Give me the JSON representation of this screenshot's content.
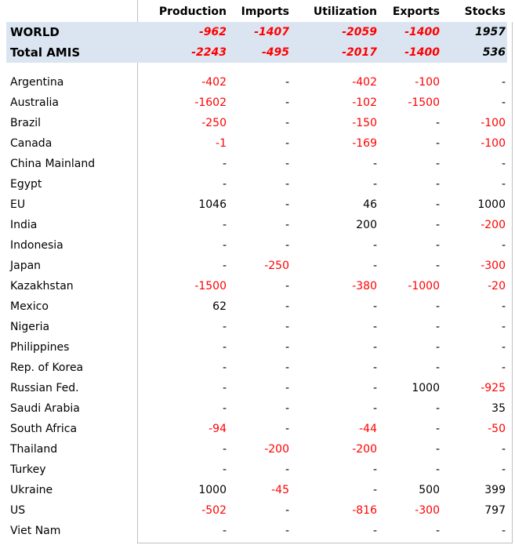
{
  "headers": [
    "Production",
    "Imports",
    "Utilization",
    "Exports",
    "Stocks"
  ],
  "aggregates": [
    {
      "name": "WORLD",
      "values": [
        "-962",
        "-1407",
        "-2059",
        "-1400",
        "1957"
      ]
    },
    {
      "name": "Total AMIS",
      "values": [
        "-2243",
        "-495",
        "-2017",
        "-1400",
        "536"
      ]
    }
  ],
  "rows": [
    {
      "name": "Argentina",
      "values": [
        "-402",
        "-",
        "-402",
        "-100",
        "-"
      ]
    },
    {
      "name": "Australia",
      "values": [
        "-1602",
        "-",
        "-102",
        "-1500",
        "-"
      ]
    },
    {
      "name": "Brazil",
      "values": [
        "-250",
        "-",
        "-150",
        "-",
        "-100"
      ]
    },
    {
      "name": "Canada",
      "values": [
        "-1",
        "-",
        "-169",
        "-",
        "-100"
      ]
    },
    {
      "name": "China Mainland",
      "values": [
        "-",
        "-",
        "-",
        "-",
        "-"
      ]
    },
    {
      "name": "Egypt",
      "values": [
        "-",
        "-",
        "-",
        "-",
        "-"
      ]
    },
    {
      "name": "EU",
      "values": [
        "1046",
        "-",
        "46",
        "-",
        "1000"
      ]
    },
    {
      "name": "India",
      "values": [
        "-",
        "-",
        "200",
        "-",
        "-200"
      ]
    },
    {
      "name": "Indonesia",
      "values": [
        "-",
        "-",
        "-",
        "-",
        "-"
      ]
    },
    {
      "name": "Japan",
      "values": [
        "-",
        "-250",
        "-",
        "-",
        "-300"
      ]
    },
    {
      "name": "Kazakhstan",
      "values": [
        "-1500",
        "-",
        "-380",
        "-1000",
        "-20"
      ]
    },
    {
      "name": "Mexico",
      "values": [
        "62",
        "-",
        "-",
        "-",
        "-"
      ]
    },
    {
      "name": "Nigeria",
      "values": [
        "-",
        "-",
        "-",
        "-",
        "-"
      ]
    },
    {
      "name": "Philippines",
      "values": [
        "-",
        "-",
        "-",
        "-",
        "-"
      ]
    },
    {
      "name": "Rep. of Korea",
      "values": [
        "-",
        "-",
        "-",
        "-",
        "-"
      ]
    },
    {
      "name": "Russian Fed.",
      "values": [
        "-",
        "-",
        "-",
        "1000",
        "-925"
      ]
    },
    {
      "name": "Saudi Arabia",
      "values": [
        "-",
        "-",
        "-",
        "-",
        "35"
      ]
    },
    {
      "name": "South Africa",
      "values": [
        "-94",
        "-",
        "-44",
        "-",
        "-50"
      ]
    },
    {
      "name": "Thailand",
      "values": [
        "-",
        "-200",
        "-200",
        "-",
        "-"
      ]
    },
    {
      "name": "Turkey",
      "values": [
        "-",
        "-",
        "-",
        "-",
        "-"
      ]
    },
    {
      "name": "Ukraine",
      "values": [
        "1000",
        "-45",
        "-",
        "500",
        "399"
      ]
    },
    {
      "name": "US",
      "values": [
        "-502",
        "-",
        "-816",
        "-300",
        "797"
      ]
    },
    {
      "name": "Viet Nam",
      "values": [
        "-",
        "-",
        "-",
        "-",
        "-"
      ]
    }
  ],
  "colors": {
    "negative": "#ff0000",
    "positive": "#000000",
    "aggregate_bg": "#dbe5f1",
    "border": "#bfbfbf"
  }
}
